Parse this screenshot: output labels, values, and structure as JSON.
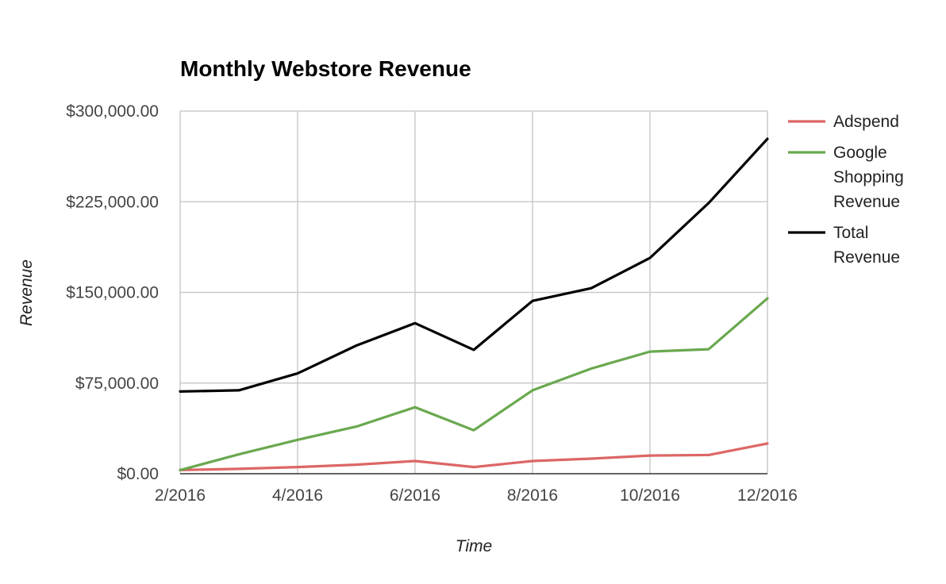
{
  "chart_data": {
    "type": "line",
    "title": "Monthly Webstore Revenue",
    "xlabel": "Time",
    "ylabel": "Revenue",
    "x": [
      "2/2016",
      "3/2016",
      "4/2016",
      "5/2016",
      "6/2016",
      "7/2016",
      "8/2016",
      "9/2016",
      "10/2016",
      "11/2016",
      "12/2016"
    ],
    "x_tick_labels": [
      "2/2016",
      "4/2016",
      "6/2016",
      "8/2016",
      "10/2016",
      "12/2016"
    ],
    "y_tick_labels": [
      "$0.00",
      "$75,000.00",
      "$150,000.00",
      "$225,000.00",
      "$300,000.00"
    ],
    "y_ticks": [
      0,
      75000,
      150000,
      225000,
      300000
    ],
    "ylim": [
      0,
      300000
    ],
    "grid": true,
    "legend_position": "right",
    "series": [
      {
        "name": "Adspend",
        "legend_lines": [
          "Adspend"
        ],
        "color": "#dd6666",
        "values": [
          3000,
          4000,
          5500,
          7500,
          10500,
          5500,
          10500,
          12500,
          15000,
          15500,
          25000
        ]
      },
      {
        "name": "Google Shopping Revenue",
        "legend_lines": [
          "Google",
          "Shopping",
          "Revenue"
        ],
        "color": "#6aa84f",
        "values": [
          3000,
          16000,
          28000,
          39000,
          55000,
          36000,
          69000,
          87000,
          101000,
          103000,
          145000
        ]
      },
      {
        "name": "Total Revenue",
        "legend_lines": [
          "Total",
          "Revenue"
        ],
        "color": "#000000",
        "values": [
          68000,
          69000,
          83000,
          106000,
          124500,
          102500,
          143000,
          153500,
          178500,
          224000,
          277000
        ]
      }
    ]
  }
}
